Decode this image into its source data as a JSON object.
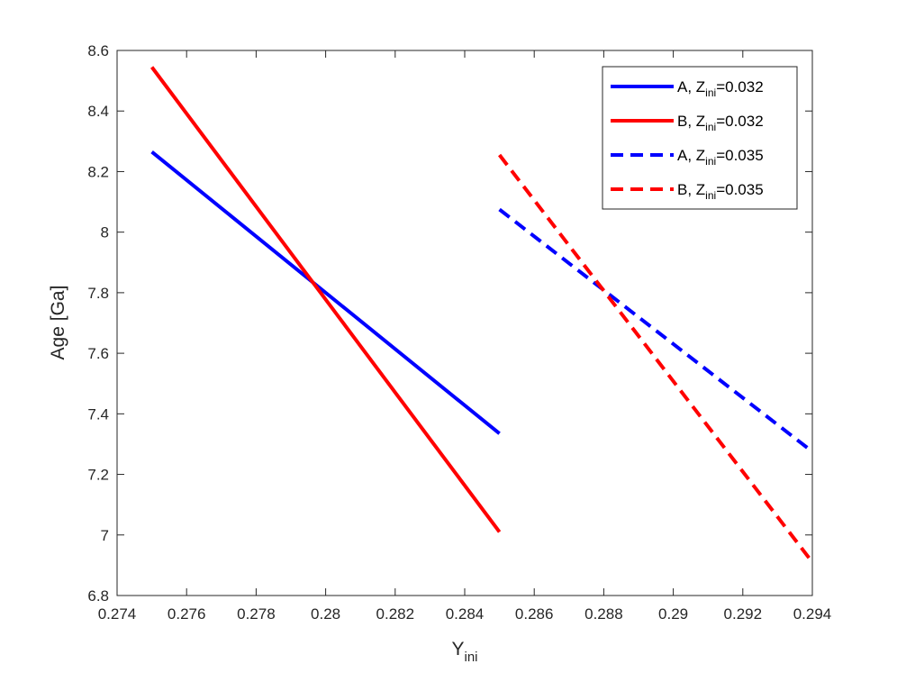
{
  "chart_data": {
    "type": "line",
    "title": "",
    "xlabel": "Y",
    "xlabel_sub": "ini",
    "ylabel": "Age [Ga]",
    "xlim": [
      0.274,
      0.294
    ],
    "ylim": [
      6.8,
      8.6
    ],
    "xticks": [
      "0.274",
      "0.276",
      "0.278",
      "0.28",
      "0.282",
      "0.284",
      "0.286",
      "0.288",
      "0.29",
      "0.292",
      "0.294"
    ],
    "yticks": [
      "6.8",
      "7",
      "7.2",
      "7.4",
      "7.6",
      "7.8",
      "8",
      "8.2",
      "8.4",
      "8.6"
    ],
    "grid": false,
    "legend_position": "top-right",
    "series": [
      {
        "name": "A, Z",
        "name_sub": "ini",
        "name_suffix": "=0.032",
        "color": "#0000ff",
        "dash": "solid",
        "x": [
          0.275,
          0.285
        ],
        "y": [
          8.265,
          7.335
        ]
      },
      {
        "name": "B, Z",
        "name_sub": "ini",
        "name_suffix": "=0.032",
        "color": "#ff0000",
        "dash": "solid",
        "x": [
          0.275,
          0.285
        ],
        "y": [
          8.545,
          7.01
        ]
      },
      {
        "name": "A, Z",
        "name_sub": "ini",
        "name_suffix": "=0.035",
        "color": "#0000ff",
        "dash": "dashed",
        "x": [
          0.285,
          0.294
        ],
        "y": [
          8.075,
          7.275
        ]
      },
      {
        "name": "B, Z",
        "name_sub": "ini",
        "name_suffix": "=0.035",
        "color": "#ff0000",
        "dash": "dashed",
        "x": [
          0.285,
          0.294
        ],
        "y": [
          8.255,
          6.91
        ]
      }
    ]
  }
}
